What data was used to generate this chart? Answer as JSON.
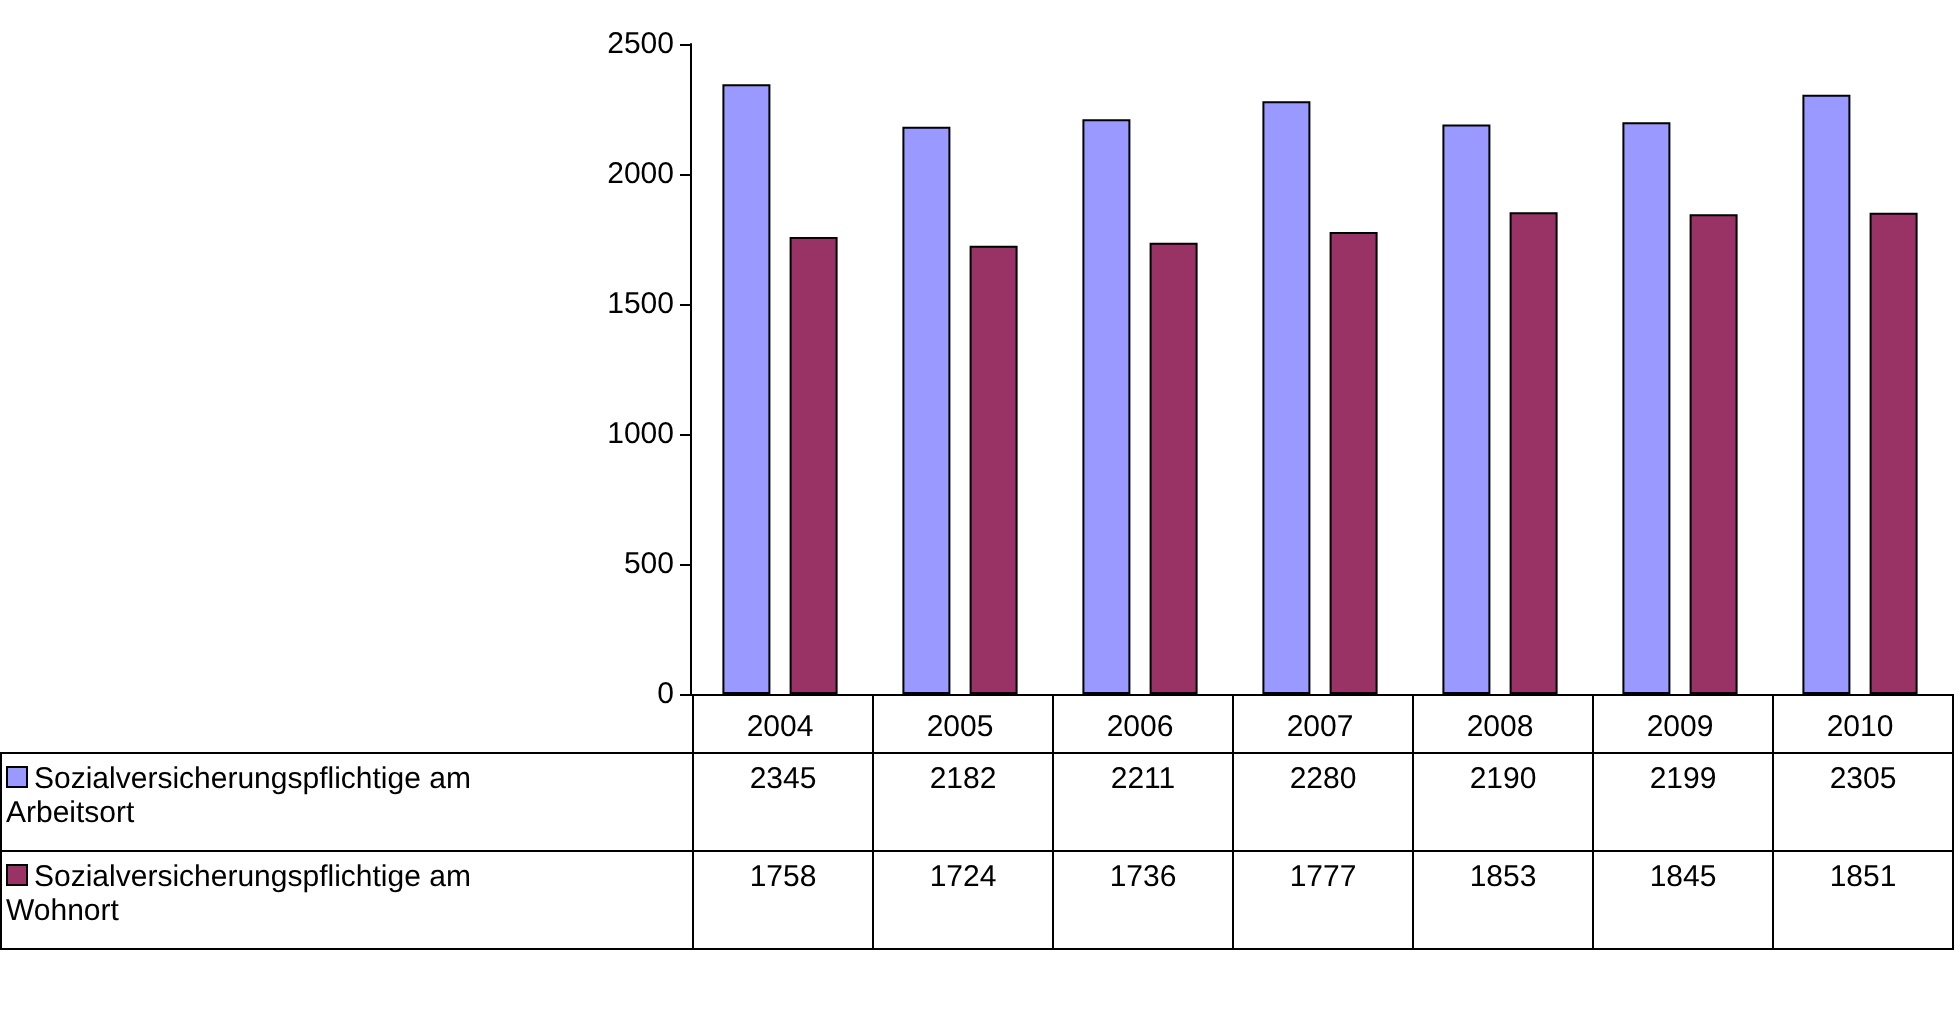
{
  "chart_data": {
    "type": "bar",
    "categories": [
      "2004",
      "2005",
      "2006",
      "2007",
      "2008",
      "2009",
      "2010"
    ],
    "series": [
      {
        "name": "Sozialversicherungspflichtige am Arbeitsort",
        "color": "#9999ff",
        "values": [
          2345,
          2182,
          2211,
          2280,
          2190,
          2199,
          2305
        ]
      },
      {
        "name": "Sozialversicherungspflichtige am Wohnort",
        "color": "#993366",
        "values": [
          1758,
          1724,
          1736,
          1777,
          1853,
          1845,
          1851
        ]
      }
    ],
    "ylim": [
      0,
      2500
    ],
    "yticks": [
      0,
      500,
      1000,
      1500,
      2000,
      2500
    ],
    "grid": false,
    "legend": "bottom",
    "data_labels": true
  }
}
